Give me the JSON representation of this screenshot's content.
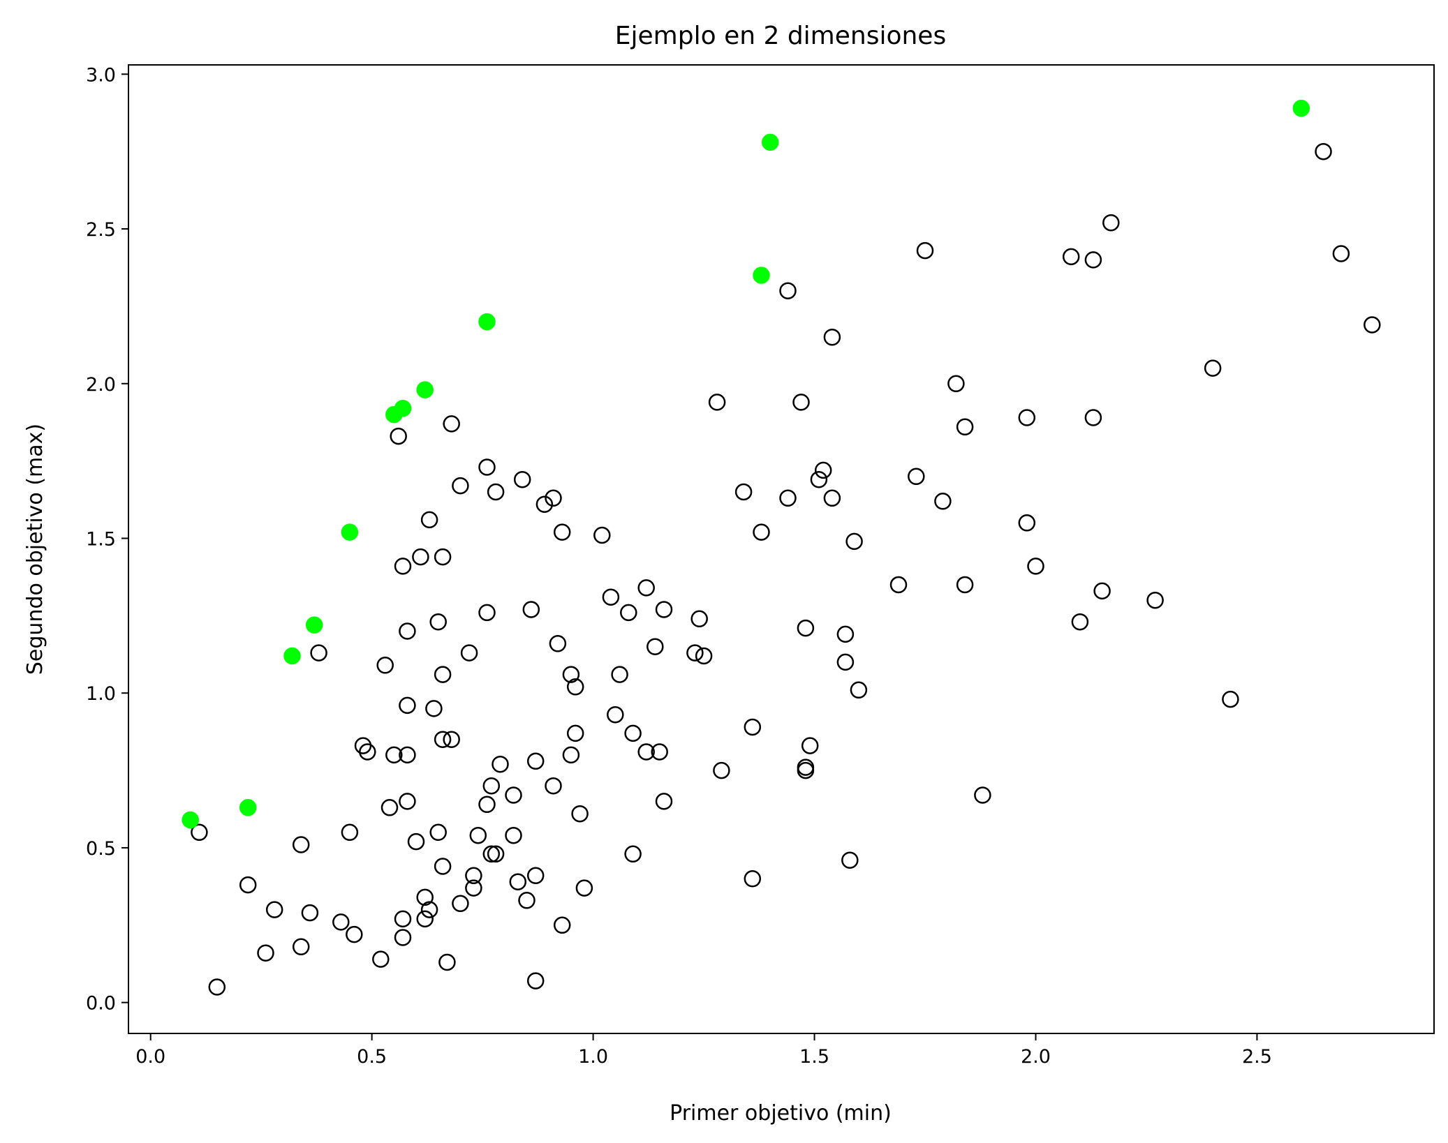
{
  "chart_data": {
    "type": "scatter",
    "title": "Ejemplo en 2 dimensiones",
    "xlabel": "Primer objetivo (min)",
    "ylabel": "Segundo objetivo (max)",
    "xlim": [
      -0.05,
      2.9
    ],
    "ylim": [
      -0.1,
      3.03
    ],
    "xticks": [
      0.0,
      0.5,
      1.0,
      1.5,
      2.0,
      2.5
    ],
    "xtick_labels": [
      "0.0",
      "0.5",
      "1.0",
      "1.5",
      "2.0",
      "2.5"
    ],
    "yticks": [
      0.0,
      0.5,
      1.0,
      1.5,
      2.0,
      2.5,
      3.0
    ],
    "ytick_labels": [
      "0.0",
      "0.5",
      "1.0",
      "1.5",
      "2.0",
      "2.5",
      "3.0"
    ],
    "grid": false,
    "colors": {
      "dominated": "#000000",
      "pareto": "#00ff00"
    },
    "series": [
      {
        "style": "hollow",
        "points": [
          [
            0.11,
            0.55
          ],
          [
            0.15,
            0.05
          ],
          [
            0.22,
            0.38
          ],
          [
            0.26,
            0.16
          ],
          [
            0.28,
            0.3
          ],
          [
            0.34,
            0.51
          ],
          [
            0.34,
            0.18
          ],
          [
            0.36,
            0.29
          ],
          [
            0.38,
            1.13
          ],
          [
            0.43,
            0.26
          ],
          [
            0.45,
            0.55
          ],
          [
            0.46,
            0.22
          ],
          [
            0.48,
            0.83
          ],
          [
            0.49,
            0.81
          ],
          [
            0.52,
            0.14
          ],
          [
            0.53,
            1.09
          ],
          [
            0.54,
            0.63
          ],
          [
            0.55,
            0.8
          ],
          [
            0.56,
            1.83
          ],
          [
            0.57,
            1.41
          ],
          [
            0.57,
            0.27
          ],
          [
            0.57,
            0.21
          ],
          [
            0.58,
            1.2
          ],
          [
            0.58,
            0.8
          ],
          [
            0.58,
            0.65
          ],
          [
            0.58,
            0.96
          ],
          [
            0.6,
            0.52
          ],
          [
            0.61,
            1.44
          ],
          [
            0.62,
            0.34
          ],
          [
            0.62,
            0.27
          ],
          [
            0.63,
            1.56
          ],
          [
            0.63,
            0.3
          ],
          [
            0.64,
            0.95
          ],
          [
            0.65,
            1.23
          ],
          [
            0.65,
            0.55
          ],
          [
            0.66,
            0.44
          ],
          [
            0.66,
            1.06
          ],
          [
            0.66,
            1.44
          ],
          [
            0.66,
            0.85
          ],
          [
            0.67,
            0.13
          ],
          [
            0.68,
            1.87
          ],
          [
            0.68,
            0.85
          ],
          [
            0.7,
            1.67
          ],
          [
            0.7,
            0.32
          ],
          [
            0.72,
            1.13
          ],
          [
            0.73,
            0.41
          ],
          [
            0.73,
            0.37
          ],
          [
            0.74,
            0.54
          ],
          [
            0.76,
            1.26
          ],
          [
            0.76,
            0.64
          ],
          [
            0.76,
            1.73
          ],
          [
            0.77,
            0.7
          ],
          [
            0.77,
            0.48
          ],
          [
            0.78,
            1.65
          ],
          [
            0.78,
            0.48
          ],
          [
            0.79,
            0.77
          ],
          [
            0.82,
            0.67
          ],
          [
            0.82,
            0.54
          ],
          [
            0.83,
            0.39
          ],
          [
            0.84,
            1.69
          ],
          [
            0.85,
            0.33
          ],
          [
            0.86,
            1.27
          ],
          [
            0.87,
            0.78
          ],
          [
            0.87,
            0.41
          ],
          [
            0.87,
            0.07
          ],
          [
            0.89,
            1.61
          ],
          [
            0.91,
            1.63
          ],
          [
            0.91,
            0.7
          ],
          [
            0.92,
            1.16
          ],
          [
            0.93,
            0.25
          ],
          [
            0.93,
            1.52
          ],
          [
            0.95,
            1.06
          ],
          [
            0.95,
            0.8
          ],
          [
            0.96,
            1.02
          ],
          [
            0.96,
            0.87
          ],
          [
            0.97,
            0.61
          ],
          [
            0.98,
            0.37
          ],
          [
            1.02,
            1.51
          ],
          [
            1.04,
            1.31
          ],
          [
            1.05,
            0.93
          ],
          [
            1.06,
            1.06
          ],
          [
            1.08,
            1.26
          ],
          [
            1.09,
            0.87
          ],
          [
            1.09,
            0.48
          ],
          [
            1.12,
            1.34
          ],
          [
            1.12,
            0.81
          ],
          [
            1.14,
            1.15
          ],
          [
            1.15,
            0.81
          ],
          [
            1.16,
            1.27
          ],
          [
            1.16,
            0.65
          ],
          [
            1.23,
            1.13
          ],
          [
            1.24,
            1.24
          ],
          [
            1.25,
            1.12
          ],
          [
            1.28,
            1.94
          ],
          [
            1.29,
            0.75
          ],
          [
            1.34,
            1.65
          ],
          [
            1.36,
            0.89
          ],
          [
            1.36,
            0.4
          ],
          [
            1.38,
            1.52
          ],
          [
            1.44,
            2.3
          ],
          [
            1.44,
            1.63
          ],
          [
            1.47,
            1.94
          ],
          [
            1.48,
            0.76
          ],
          [
            1.48,
            0.75
          ],
          [
            1.48,
            1.21
          ],
          [
            1.49,
            0.83
          ],
          [
            1.51,
            1.69
          ],
          [
            1.52,
            1.72
          ],
          [
            1.54,
            2.15
          ],
          [
            1.54,
            1.63
          ],
          [
            1.57,
            1.19
          ],
          [
            1.57,
            1.1
          ],
          [
            1.58,
            0.46
          ],
          [
            1.59,
            1.49
          ],
          [
            1.6,
            1.01
          ],
          [
            1.69,
            1.35
          ],
          [
            1.73,
            1.7
          ],
          [
            1.75,
            2.43
          ],
          [
            1.79,
            1.62
          ],
          [
            1.82,
            2.0
          ],
          [
            1.84,
            1.35
          ],
          [
            1.84,
            1.86
          ],
          [
            1.88,
            0.67
          ],
          [
            1.98,
            1.89
          ],
          [
            1.98,
            1.55
          ],
          [
            2.0,
            1.41
          ],
          [
            2.08,
            2.41
          ],
          [
            2.1,
            1.23
          ],
          [
            2.13,
            2.4
          ],
          [
            2.13,
            1.89
          ],
          [
            2.15,
            1.33
          ],
          [
            2.17,
            2.52
          ],
          [
            2.27,
            1.3
          ],
          [
            2.4,
            2.05
          ],
          [
            2.44,
            0.98
          ],
          [
            2.65,
            2.75
          ],
          [
            2.69,
            2.42
          ],
          [
            2.76,
            2.19
          ]
        ]
      },
      {
        "style": "filled",
        "points": [
          [
            0.09,
            0.59
          ],
          [
            0.22,
            0.63
          ],
          [
            0.32,
            1.12
          ],
          [
            0.37,
            1.22
          ],
          [
            0.45,
            1.52
          ],
          [
            0.55,
            1.9
          ],
          [
            0.57,
            1.92
          ],
          [
            0.62,
            1.98
          ],
          [
            0.76,
            2.2
          ],
          [
            1.38,
            2.35
          ],
          [
            1.4,
            2.78
          ],
          [
            2.6,
            2.89
          ]
        ]
      }
    ]
  }
}
